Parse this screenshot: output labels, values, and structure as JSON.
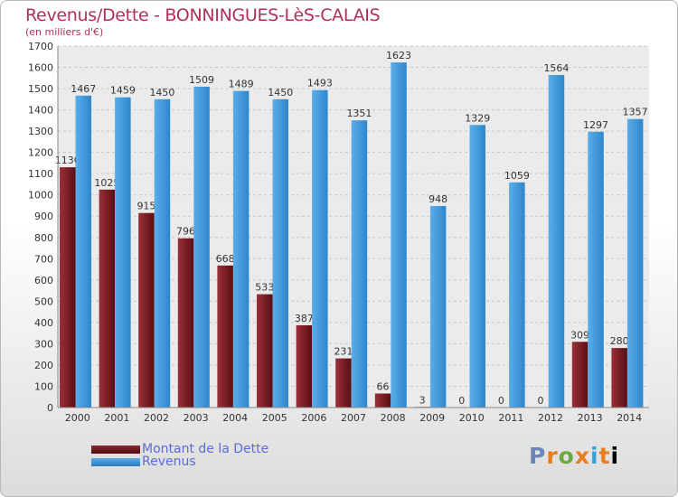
{
  "page": {
    "title": "Revenus/Dette - BONNINGUES-LèS-CALAIS",
    "subtitle": "(en milliers d'€)",
    "logo_text": "Proxiti"
  },
  "chart_data": {
    "type": "bar",
    "title": "Revenus/Dette - BONNINGUES-LèS-CALAIS",
    "subtitle": "(en milliers d'€)",
    "categories": [
      "2000",
      "2001",
      "2002",
      "2003",
      "2004",
      "2005",
      "2006",
      "2007",
      "2008",
      "2009",
      "2010",
      "2011",
      "2012",
      "2013",
      "2014"
    ],
    "series": [
      {
        "name": "Montant de la Dette",
        "color": "#7a1a1f",
        "values": [
          1130,
          1025,
          915,
          796,
          668,
          533,
          387,
          231,
          66,
          3,
          0,
          0,
          0,
          309,
          280
        ],
        "labels": [
          "1130",
          "1025",
          "915",
          "796",
          "668",
          "533",
          "387",
          "231",
          "66",
          "3",
          "0",
          "0",
          "0",
          "309",
          "280"
        ]
      },
      {
        "name": "Revenus",
        "color": "#3e96dc",
        "values": [
          1467,
          1459,
          1450,
          1509,
          1489,
          1450,
          1493,
          1351,
          1623,
          948,
          1329,
          1059,
          1564,
          1297,
          1357
        ],
        "labels": [
          "1467",
          "1459",
          "1450",
          "1509",
          "1489",
          "1450",
          "1493",
          "1351",
          "1623",
          "948",
          "1329",
          "1059",
          "1564",
          "1297",
          "1357"
        ]
      }
    ],
    "ylim": [
      0,
      1700
    ],
    "yticks": [
      0,
      100,
      200,
      300,
      400,
      500,
      600,
      700,
      800,
      900,
      1000,
      1100,
      1200,
      1300,
      1400,
      1500,
      1600,
      1700
    ],
    "grid": true,
    "legend": "bottom-left"
  }
}
